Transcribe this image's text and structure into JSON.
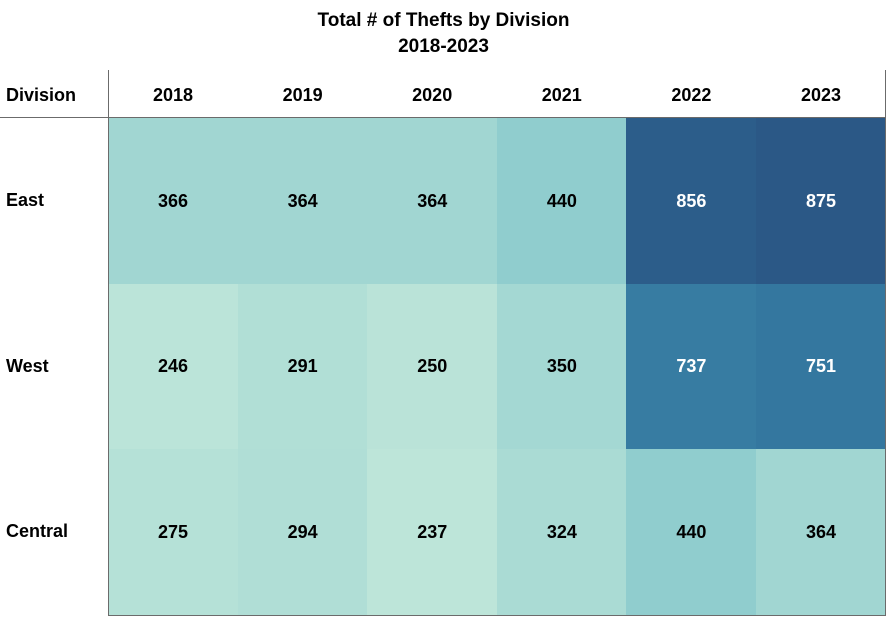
{
  "chart_data": {
    "type": "heatmap",
    "title": "Total # of Thefts by Division",
    "subtitle": "2018-2023",
    "row_header_label": "Division",
    "columns": [
      "2018",
      "2019",
      "2020",
      "2021",
      "2022",
      "2023"
    ],
    "rows": [
      "East",
      "West",
      "Central"
    ],
    "values": [
      [
        366,
        364,
        364,
        440,
        856,
        875
      ],
      [
        246,
        291,
        250,
        350,
        737,
        751
      ],
      [
        275,
        294,
        237,
        324,
        440,
        364
      ]
    ],
    "color_scale": [
      "#bde5d9",
      "#8ccbcd",
      "#71b9c7",
      "#3478a0",
      "#2b5886"
    ]
  }
}
